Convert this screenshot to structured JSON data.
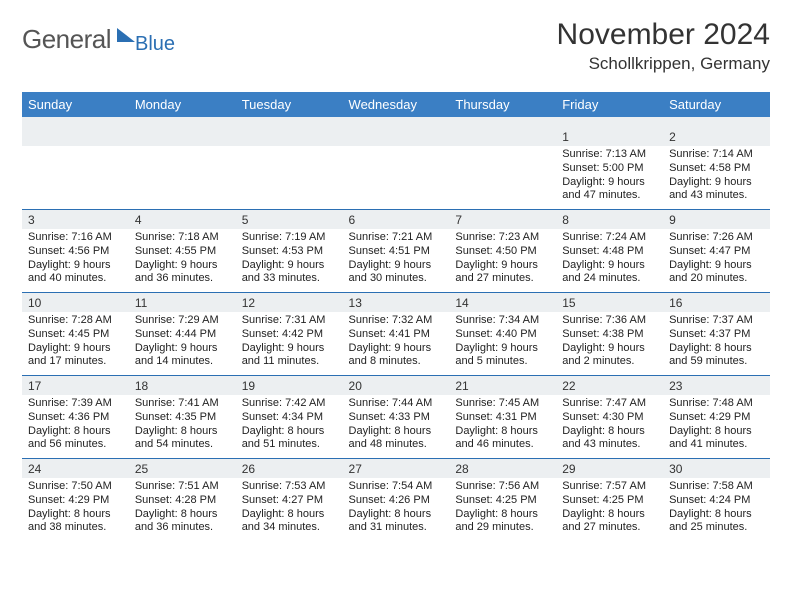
{
  "logo": {
    "word1": "General",
    "word2": "Blue"
  },
  "title": "November 2024",
  "location": "Schollkrippen, Germany",
  "colors": {
    "header_bg": "#3b7fc4",
    "header_text": "#ffffff",
    "daynum_bg": "#eceff1",
    "row_divider": "#2b6fb3",
    "body_text": "#222222",
    "logo_gray": "#555555",
    "logo_blue": "#2b6fb3",
    "page_bg": "#ffffff"
  },
  "typography": {
    "title_fontsize": 30,
    "location_fontsize": 17,
    "dayheader_fontsize": 13,
    "daynum_fontsize": 12,
    "cell_fontsize": 11
  },
  "day_headers": [
    "Sunday",
    "Monday",
    "Tuesday",
    "Wednesday",
    "Thursday",
    "Friday",
    "Saturday"
  ],
  "weeks": [
    [
      {
        "num": "",
        "lines": []
      },
      {
        "num": "",
        "lines": []
      },
      {
        "num": "",
        "lines": []
      },
      {
        "num": "",
        "lines": []
      },
      {
        "num": "",
        "lines": []
      },
      {
        "num": "1",
        "lines": [
          "Sunrise: 7:13 AM",
          "Sunset: 5:00 PM",
          "Daylight: 9 hours",
          "and 47 minutes."
        ]
      },
      {
        "num": "2",
        "lines": [
          "Sunrise: 7:14 AM",
          "Sunset: 4:58 PM",
          "Daylight: 9 hours",
          "and 43 minutes."
        ]
      }
    ],
    [
      {
        "num": "3",
        "lines": [
          "Sunrise: 7:16 AM",
          "Sunset: 4:56 PM",
          "Daylight: 9 hours",
          "and 40 minutes."
        ]
      },
      {
        "num": "4",
        "lines": [
          "Sunrise: 7:18 AM",
          "Sunset: 4:55 PM",
          "Daylight: 9 hours",
          "and 36 minutes."
        ]
      },
      {
        "num": "5",
        "lines": [
          "Sunrise: 7:19 AM",
          "Sunset: 4:53 PM",
          "Daylight: 9 hours",
          "and 33 minutes."
        ]
      },
      {
        "num": "6",
        "lines": [
          "Sunrise: 7:21 AM",
          "Sunset: 4:51 PM",
          "Daylight: 9 hours",
          "and 30 minutes."
        ]
      },
      {
        "num": "7",
        "lines": [
          "Sunrise: 7:23 AM",
          "Sunset: 4:50 PM",
          "Daylight: 9 hours",
          "and 27 minutes."
        ]
      },
      {
        "num": "8",
        "lines": [
          "Sunrise: 7:24 AM",
          "Sunset: 4:48 PM",
          "Daylight: 9 hours",
          "and 24 minutes."
        ]
      },
      {
        "num": "9",
        "lines": [
          "Sunrise: 7:26 AM",
          "Sunset: 4:47 PM",
          "Daylight: 9 hours",
          "and 20 minutes."
        ]
      }
    ],
    [
      {
        "num": "10",
        "lines": [
          "Sunrise: 7:28 AM",
          "Sunset: 4:45 PM",
          "Daylight: 9 hours",
          "and 17 minutes."
        ]
      },
      {
        "num": "11",
        "lines": [
          "Sunrise: 7:29 AM",
          "Sunset: 4:44 PM",
          "Daylight: 9 hours",
          "and 14 minutes."
        ]
      },
      {
        "num": "12",
        "lines": [
          "Sunrise: 7:31 AM",
          "Sunset: 4:42 PM",
          "Daylight: 9 hours",
          "and 11 minutes."
        ]
      },
      {
        "num": "13",
        "lines": [
          "Sunrise: 7:32 AM",
          "Sunset: 4:41 PM",
          "Daylight: 9 hours",
          "and 8 minutes."
        ]
      },
      {
        "num": "14",
        "lines": [
          "Sunrise: 7:34 AM",
          "Sunset: 4:40 PM",
          "Daylight: 9 hours",
          "and 5 minutes."
        ]
      },
      {
        "num": "15",
        "lines": [
          "Sunrise: 7:36 AM",
          "Sunset: 4:38 PM",
          "Daylight: 9 hours",
          "and 2 minutes."
        ]
      },
      {
        "num": "16",
        "lines": [
          "Sunrise: 7:37 AM",
          "Sunset: 4:37 PM",
          "Daylight: 8 hours",
          "and 59 minutes."
        ]
      }
    ],
    [
      {
        "num": "17",
        "lines": [
          "Sunrise: 7:39 AM",
          "Sunset: 4:36 PM",
          "Daylight: 8 hours",
          "and 56 minutes."
        ]
      },
      {
        "num": "18",
        "lines": [
          "Sunrise: 7:41 AM",
          "Sunset: 4:35 PM",
          "Daylight: 8 hours",
          "and 54 minutes."
        ]
      },
      {
        "num": "19",
        "lines": [
          "Sunrise: 7:42 AM",
          "Sunset: 4:34 PM",
          "Daylight: 8 hours",
          "and 51 minutes."
        ]
      },
      {
        "num": "20",
        "lines": [
          "Sunrise: 7:44 AM",
          "Sunset: 4:33 PM",
          "Daylight: 8 hours",
          "and 48 minutes."
        ]
      },
      {
        "num": "21",
        "lines": [
          "Sunrise: 7:45 AM",
          "Sunset: 4:31 PM",
          "Daylight: 8 hours",
          "and 46 minutes."
        ]
      },
      {
        "num": "22",
        "lines": [
          "Sunrise: 7:47 AM",
          "Sunset: 4:30 PM",
          "Daylight: 8 hours",
          "and 43 minutes."
        ]
      },
      {
        "num": "23",
        "lines": [
          "Sunrise: 7:48 AM",
          "Sunset: 4:29 PM",
          "Daylight: 8 hours",
          "and 41 minutes."
        ]
      }
    ],
    [
      {
        "num": "24",
        "lines": [
          "Sunrise: 7:50 AM",
          "Sunset: 4:29 PM",
          "Daylight: 8 hours",
          "and 38 minutes."
        ]
      },
      {
        "num": "25",
        "lines": [
          "Sunrise: 7:51 AM",
          "Sunset: 4:28 PM",
          "Daylight: 8 hours",
          "and 36 minutes."
        ]
      },
      {
        "num": "26",
        "lines": [
          "Sunrise: 7:53 AM",
          "Sunset: 4:27 PM",
          "Daylight: 8 hours",
          "and 34 minutes."
        ]
      },
      {
        "num": "27",
        "lines": [
          "Sunrise: 7:54 AM",
          "Sunset: 4:26 PM",
          "Daylight: 8 hours",
          "and 31 minutes."
        ]
      },
      {
        "num": "28",
        "lines": [
          "Sunrise: 7:56 AM",
          "Sunset: 4:25 PM",
          "Daylight: 8 hours",
          "and 29 minutes."
        ]
      },
      {
        "num": "29",
        "lines": [
          "Sunrise: 7:57 AM",
          "Sunset: 4:25 PM",
          "Daylight: 8 hours",
          "and 27 minutes."
        ]
      },
      {
        "num": "30",
        "lines": [
          "Sunrise: 7:58 AM",
          "Sunset: 4:24 PM",
          "Daylight: 8 hours",
          "and 25 minutes."
        ]
      }
    ]
  ]
}
